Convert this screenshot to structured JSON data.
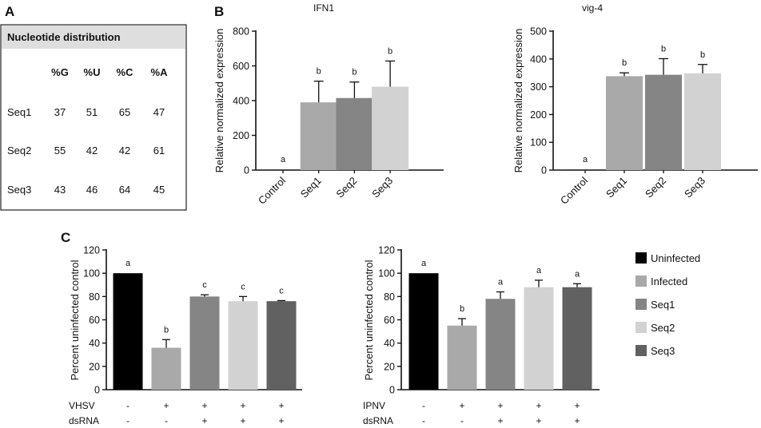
{
  "panels": {
    "a": "A",
    "b": "B",
    "c": "C"
  },
  "table": {
    "title": "Nucleotide distribution",
    "headers": [
      "%G",
      "%U",
      "%C",
      "%A"
    ],
    "rows": [
      {
        "label": "Seq1",
        "values": [
          "37",
          "51",
          "65",
          "47"
        ]
      },
      {
        "label": "Seq2",
        "values": [
          "55",
          "42",
          "42",
          "61"
        ]
      },
      {
        "label": "Seq3",
        "values": [
          "43",
          "46",
          "64",
          "45"
        ]
      }
    ]
  },
  "chart_data": [
    {
      "id": "ifn1",
      "type": "bar",
      "title": "IFN1",
      "ylabel": "Relative normalized expression",
      "xlabel": "",
      "ylim": [
        0,
        800
      ],
      "yticks": [
        0,
        200,
        400,
        600,
        800
      ],
      "categories": [
        "Control",
        "Seq1",
        "Seq2",
        "Seq3"
      ],
      "values": [
        2,
        390,
        415,
        480
      ],
      "errors": [
        0,
        122,
        92,
        148
      ],
      "labels": [
        "a",
        "b",
        "b",
        "b"
      ],
      "colors": [
        "#333333",
        "#a9a9a9",
        "#858585",
        "#d2d2d2"
      ]
    },
    {
      "id": "vig4",
      "type": "bar",
      "title": "vig-4",
      "ylabel": "Relative normalized expression",
      "xlabel": "",
      "ylim": [
        0,
        500
      ],
      "yticks": [
        0,
        100,
        200,
        300,
        400,
        500
      ],
      "categories": [
        "Control",
        "Seq1",
        "Seq2",
        "Seq3"
      ],
      "values": [
        1,
        338,
        343,
        348
      ],
      "errors": [
        0,
        12,
        58,
        32
      ],
      "labels": [
        "a",
        "b",
        "b",
        "b"
      ],
      "colors": [
        "#333333",
        "#a9a9a9",
        "#858585",
        "#d2d2d2"
      ]
    },
    {
      "id": "vhsv",
      "type": "bar",
      "title": "",
      "ylabel": "Percent uninfected control",
      "xlabel": "",
      "ylim": [
        0,
        120
      ],
      "yticks": [
        0,
        20,
        40,
        60,
        80,
        100,
        120
      ],
      "categories": [
        "Uninfected",
        "Infected",
        "Seq1",
        "Seq2",
        "Seq3"
      ],
      "values": [
        100,
        36,
        80,
        76,
        76
      ],
      "errors": [
        0,
        7,
        1.5,
        4,
        0.5
      ],
      "labels": [
        "a",
        "b",
        "c",
        "c",
        "c"
      ],
      "colors": [
        "#000000",
        "#a9a9a9",
        "#858585",
        "#d2d2d2",
        "#616161"
      ],
      "virus_label": "VHSV",
      "dsrna_label": "dsRNA",
      "virus_signs": [
        "-",
        "+",
        "+",
        "+",
        "+"
      ],
      "dsrna_signs": [
        "-",
        "-",
        "+",
        "+",
        "+"
      ]
    },
    {
      "id": "ipnv",
      "type": "bar",
      "title": "",
      "ylabel": "Percent uninfected control",
      "xlabel": "",
      "ylim": [
        0,
        120
      ],
      "yticks": [
        0,
        20,
        40,
        60,
        80,
        100,
        120
      ],
      "categories": [
        "Uninfected",
        "Infected",
        "Seq1",
        "Seq2",
        "Seq3"
      ],
      "values": [
        100,
        55,
        78,
        88,
        88
      ],
      "errors": [
        0,
        6,
        6,
        6,
        3
      ],
      "labels": [
        "a",
        "b",
        "a",
        "a",
        "a"
      ],
      "colors": [
        "#000000",
        "#a9a9a9",
        "#858585",
        "#d2d2d2",
        "#616161"
      ],
      "virus_label": "IPNV",
      "dsrna_label": "dsRNA",
      "virus_signs": [
        "-",
        "+",
        "+",
        "+",
        "+"
      ],
      "dsrna_signs": [
        "-",
        "-",
        "+",
        "+",
        "+"
      ]
    }
  ],
  "legend": {
    "items": [
      {
        "label": "Uninfected",
        "color": "#000000"
      },
      {
        "label": "Infected",
        "color": "#a9a9a9"
      },
      {
        "label": "Seq1",
        "color": "#858585"
      },
      {
        "label": "Seq2",
        "color": "#d2d2d2"
      },
      {
        "label": "Seq3",
        "color": "#616161"
      }
    ]
  }
}
